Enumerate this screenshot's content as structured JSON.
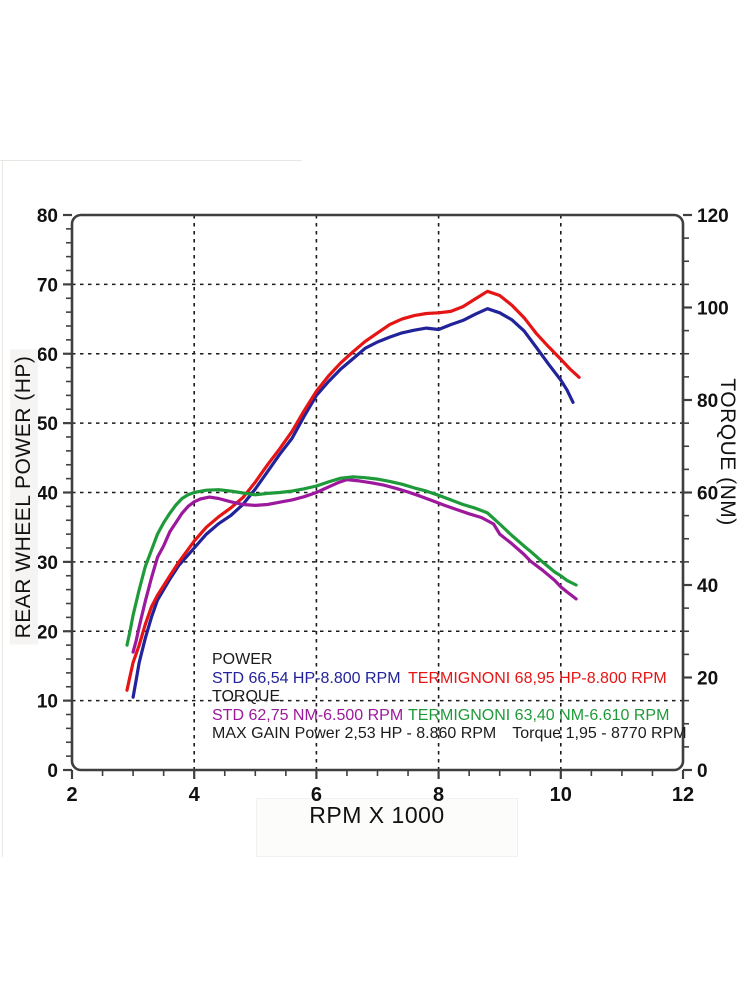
{
  "chart_data": {
    "type": "line",
    "xlabel": "RPM X 1000",
    "ylabel_left": "REAR WHEEL POWER (HP)",
    "ylabel_right": "TORQUE (NM)",
    "x_range": [
      2,
      12
    ],
    "x_major_ticks": [
      2,
      4,
      6,
      8,
      10,
      12
    ],
    "x_minor_step": 0.5,
    "y_left_range": [
      0,
      80
    ],
    "y_left_major_ticks": [
      0,
      10,
      20,
      30,
      40,
      50,
      60,
      70,
      80
    ],
    "y_left_minor_step": 2,
    "y_right_range": [
      0,
      120
    ],
    "y_right_major_ticks": [
      0,
      20,
      40,
      60,
      80,
      100,
      120
    ],
    "y_right_minor_step": 5,
    "grid": {
      "style": "dashed",
      "vertical_at_rpm": [
        4,
        6,
        8,
        10
      ],
      "horizontal_at_hp": [
        10,
        20,
        30,
        40,
        50,
        60,
        70
      ]
    },
    "series": [
      {
        "name": "power-std",
        "label": "STD 66,54 HP-8.800 RPM",
        "axis": "left",
        "unit": "HP",
        "color": "#22229b",
        "peak": {
          "value": 66.54,
          "rpm": 8800
        },
        "points": [
          [
            3.0,
            10.5
          ],
          [
            3.05,
            13.0
          ],
          [
            3.1,
            15.5
          ],
          [
            3.2,
            19.0
          ],
          [
            3.3,
            22.0
          ],
          [
            3.4,
            24.5
          ],
          [
            3.5,
            26.0
          ],
          [
            3.6,
            27.5
          ],
          [
            3.75,
            29.5
          ],
          [
            3.9,
            31.0
          ],
          [
            4.0,
            32.0
          ],
          [
            4.2,
            34.0
          ],
          [
            4.4,
            35.5
          ],
          [
            4.6,
            36.7
          ],
          [
            4.8,
            38.3
          ],
          [
            5.0,
            40.5
          ],
          [
            5.2,
            43.0
          ],
          [
            5.4,
            45.5
          ],
          [
            5.6,
            47.8
          ],
          [
            5.8,
            51.0
          ],
          [
            6.0,
            54.0
          ],
          [
            6.2,
            56.0
          ],
          [
            6.4,
            57.8
          ],
          [
            6.6,
            59.3
          ],
          [
            6.8,
            60.8
          ],
          [
            7.0,
            61.7
          ],
          [
            7.2,
            62.4
          ],
          [
            7.4,
            63.0
          ],
          [
            7.6,
            63.4
          ],
          [
            7.8,
            63.7
          ],
          [
            8.0,
            63.5
          ],
          [
            8.2,
            64.2
          ],
          [
            8.4,
            64.8
          ],
          [
            8.6,
            65.7
          ],
          [
            8.8,
            66.5
          ],
          [
            9.0,
            65.9
          ],
          [
            9.2,
            64.9
          ],
          [
            9.4,
            63.3
          ],
          [
            9.6,
            60.9
          ],
          [
            9.8,
            58.5
          ],
          [
            10.0,
            56.2
          ],
          [
            10.1,
            54.8
          ],
          [
            10.2,
            53.0
          ]
        ]
      },
      {
        "name": "power-termignoni",
        "label": "TERMIGNONI 68,95 HP-8.800 RPM",
        "axis": "left",
        "unit": "HP",
        "color": "#e51515",
        "peak": {
          "value": 68.95,
          "rpm": 8800
        },
        "points": [
          [
            2.9,
            11.5
          ],
          [
            2.95,
            13.5
          ],
          [
            3.0,
            15.5
          ],
          [
            3.1,
            18.0
          ],
          [
            3.2,
            21.0
          ],
          [
            3.3,
            23.5
          ],
          [
            3.4,
            25.2
          ],
          [
            3.5,
            26.6
          ],
          [
            3.6,
            28.0
          ],
          [
            3.75,
            30.0
          ],
          [
            3.9,
            31.8
          ],
          [
            4.0,
            33.0
          ],
          [
            4.2,
            35.0
          ],
          [
            4.4,
            36.5
          ],
          [
            4.6,
            37.8
          ],
          [
            4.8,
            39.3
          ],
          [
            5.0,
            41.5
          ],
          [
            5.2,
            44.0
          ],
          [
            5.4,
            46.3
          ],
          [
            5.6,
            48.8
          ],
          [
            5.8,
            51.8
          ],
          [
            6.0,
            54.6
          ],
          [
            6.2,
            56.8
          ],
          [
            6.4,
            58.7
          ],
          [
            6.6,
            60.3
          ],
          [
            6.8,
            61.8
          ],
          [
            7.0,
            63.0
          ],
          [
            7.2,
            64.2
          ],
          [
            7.4,
            65.0
          ],
          [
            7.6,
            65.5
          ],
          [
            7.8,
            65.8
          ],
          [
            8.0,
            65.9
          ],
          [
            8.2,
            66.1
          ],
          [
            8.4,
            66.8
          ],
          [
            8.6,
            67.9
          ],
          [
            8.8,
            69.0
          ],
          [
            9.0,
            68.4
          ],
          [
            9.2,
            67.0
          ],
          [
            9.4,
            65.2
          ],
          [
            9.6,
            62.9
          ],
          [
            9.8,
            61.0
          ],
          [
            10.0,
            59.2
          ],
          [
            10.15,
            57.8
          ],
          [
            10.3,
            56.6
          ]
        ]
      },
      {
        "name": "torque-std",
        "label": "STD 62,75 NM-6.500 RPM",
        "axis": "right",
        "unit": "NM",
        "color": "#9c189c",
        "peak": {
          "value": 62.75,
          "rpm": 6500
        },
        "points": [
          [
            3.0,
            25.5
          ],
          [
            3.05,
            28.0
          ],
          [
            3.1,
            31.0
          ],
          [
            3.2,
            36.5
          ],
          [
            3.3,
            41.5
          ],
          [
            3.4,
            46.0
          ],
          [
            3.5,
            48.5
          ],
          [
            3.6,
            51.5
          ],
          [
            3.7,
            53.5
          ],
          [
            3.8,
            55.5
          ],
          [
            3.9,
            57.0
          ],
          [
            4.0,
            58.0
          ],
          [
            4.1,
            58.6
          ],
          [
            4.25,
            59.0
          ],
          [
            4.4,
            58.7
          ],
          [
            4.6,
            58.0
          ],
          [
            4.8,
            57.4
          ],
          [
            5.0,
            57.2
          ],
          [
            5.2,
            57.4
          ],
          [
            5.4,
            57.9
          ],
          [
            5.6,
            58.4
          ],
          [
            5.8,
            59.1
          ],
          [
            6.0,
            60.0
          ],
          [
            6.2,
            61.2
          ],
          [
            6.35,
            62.1
          ],
          [
            6.5,
            62.8
          ],
          [
            6.7,
            62.5
          ],
          [
            6.9,
            62.1
          ],
          [
            7.1,
            61.6
          ],
          [
            7.3,
            60.9
          ],
          [
            7.5,
            60.1
          ],
          [
            7.7,
            59.2
          ],
          [
            7.9,
            58.2
          ],
          [
            8.1,
            57.2
          ],
          [
            8.3,
            56.3
          ],
          [
            8.5,
            55.4
          ],
          [
            8.7,
            54.6
          ],
          [
            8.9,
            53.2
          ],
          [
            9.0,
            51.0
          ],
          [
            9.2,
            48.9
          ],
          [
            9.4,
            46.6
          ],
          [
            9.5,
            45.2
          ],
          [
            9.7,
            43.2
          ],
          [
            9.9,
            41.0
          ],
          [
            10.0,
            39.6
          ],
          [
            10.1,
            38.5
          ],
          [
            10.25,
            37.0
          ]
        ]
      },
      {
        "name": "torque-termignoni",
        "label": "TERMIGNONI 63,40 NM-6.610 RPM",
        "axis": "right",
        "unit": "NM",
        "color": "#1f9a3a",
        "peak": {
          "value": 63.4,
          "rpm": 6610
        },
        "points": [
          [
            2.9,
            27.0
          ],
          [
            2.95,
            30.0
          ],
          [
            3.0,
            33.5
          ],
          [
            3.1,
            39.0
          ],
          [
            3.2,
            44.0
          ],
          [
            3.3,
            47.5
          ],
          [
            3.4,
            51.0
          ],
          [
            3.5,
            53.5
          ],
          [
            3.6,
            55.5
          ],
          [
            3.7,
            57.3
          ],
          [
            3.8,
            58.7
          ],
          [
            3.9,
            59.5
          ],
          [
            4.0,
            60.0
          ],
          [
            4.2,
            60.5
          ],
          [
            4.4,
            60.6
          ],
          [
            4.6,
            60.3
          ],
          [
            4.8,
            59.9
          ],
          [
            5.0,
            59.5
          ],
          [
            5.2,
            59.8
          ],
          [
            5.4,
            60.0
          ],
          [
            5.6,
            60.3
          ],
          [
            5.8,
            60.8
          ],
          [
            6.0,
            61.4
          ],
          [
            6.2,
            62.3
          ],
          [
            6.4,
            63.1
          ],
          [
            6.6,
            63.4
          ],
          [
            6.8,
            63.2
          ],
          [
            7.0,
            62.9
          ],
          [
            7.2,
            62.4
          ],
          [
            7.4,
            61.8
          ],
          [
            7.6,
            61.0
          ],
          [
            7.8,
            60.3
          ],
          [
            8.0,
            59.4
          ],
          [
            8.2,
            58.4
          ],
          [
            8.4,
            57.4
          ],
          [
            8.6,
            56.6
          ],
          [
            8.8,
            55.6
          ],
          [
            9.0,
            53.2
          ],
          [
            9.2,
            50.7
          ],
          [
            9.4,
            48.4
          ],
          [
            9.5,
            47.3
          ],
          [
            9.7,
            45.0
          ],
          [
            9.9,
            42.8
          ],
          [
            10.0,
            42.0
          ],
          [
            10.1,
            41.0
          ],
          [
            10.25,
            40.0
          ]
        ]
      }
    ]
  },
  "axis_titles": {
    "left": "REAR WHEEL POWER (HP)",
    "right": "TORQUE (NM)",
    "bottom": "RPM X 1000"
  },
  "legend": {
    "power_heading": "POWER",
    "power_std": "STD 66,54 HP-8.800 RPM",
    "power_termignoni": "TERMIGNONI 68,95 HP-8.800 RPM",
    "torque_heading": "TORQUE",
    "torque_std": "STD 62,75 NM-6.500 RPM",
    "torque_termignoni": "TERMIGNONI 63,40 NM-6.610 RPM",
    "max_gain_power": "MAX GAIN Power 2,53 HP - 8.860 RPM",
    "max_gain_torque": "Torque 1,95 - 8770 RPM"
  },
  "colors": {
    "power_std": "#22229b",
    "power_termignoni": "#e51515",
    "torque_std": "#9c189c",
    "torque_termignoni": "#1f9a3a",
    "frame": "#3f3f3f",
    "grid": "#1a1a1a",
    "text": "#111111",
    "background": "#ffffff"
  }
}
